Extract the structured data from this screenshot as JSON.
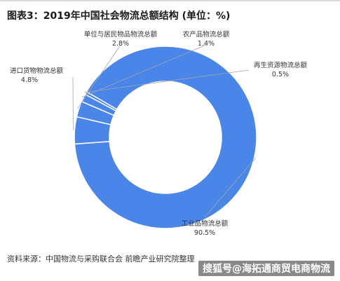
{
  "title": "图表3：2019年中国社会物流总额结构 (单位：%)",
  "source": "资料来源：中国物流与采购联合会 前瞻产业研究院整理",
  "watermark": "搜狐号@海拓通商贸电商物流",
  "chart_data": {
    "type": "pie",
    "donut": true,
    "unit": "%",
    "color": "#4a86e8",
    "slices": [
      {
        "label": "工业品物流总额",
        "value": 90.5,
        "value_label": "90.5%"
      },
      {
        "label": "进口货物物流总额",
        "value": 4.8,
        "value_label": "4.8%"
      },
      {
        "label": "单位与居民物品物流总额",
        "value": 2.8,
        "value_label": "2.8%"
      },
      {
        "label": "农产品物流总额",
        "value": 1.4,
        "value_label": "1.4%"
      },
      {
        "label": "再生资源物流总额",
        "value": 0.5,
        "value_label": "0.5%"
      }
    ]
  }
}
